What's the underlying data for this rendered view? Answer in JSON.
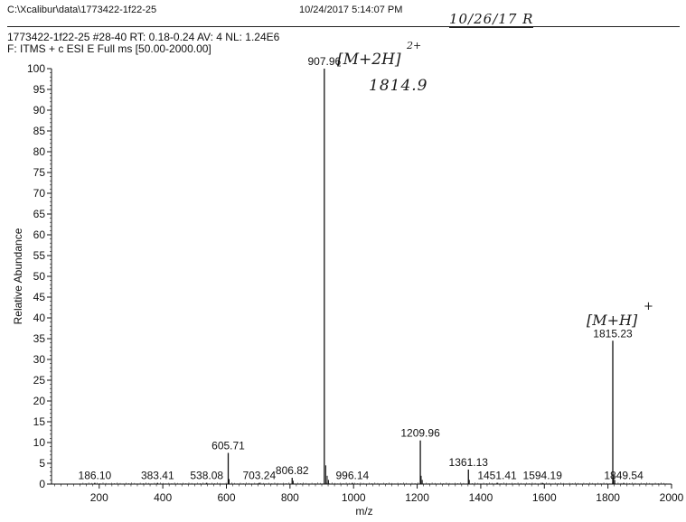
{
  "header": {
    "file_path": "C:\\Xcalibur\\data\\1773422-1f22-25",
    "datetime": "10/24/2017 5:14:07 PM",
    "scan_info": "1773422-1f22-25 #28-40   RT: 0.18-0.24   AV: 4   NL: 1.24E6",
    "filter": "F: ITMS + c ESI E Full ms [50.00-2000.00]"
  },
  "handwriting": {
    "date": "10/26/17 R",
    "m2h": "[M+2H]",
    "m2h_charge": "2+",
    "m2h_mass": "1814.9",
    "mh": "[M+H]",
    "mh_charge": "+"
  },
  "chart_data": {
    "type": "bar",
    "xlabel": "m/z",
    "ylabel": "Relative Abundance",
    "xlim": [
      50,
      2000
    ],
    "ylim": [
      0,
      100
    ],
    "x_ticks": [
      200,
      400,
      600,
      800,
      1000,
      1200,
      1400,
      1600,
      1800,
      2000
    ],
    "y_ticks": [
      0,
      5,
      10,
      15,
      20,
      25,
      30,
      35,
      40,
      45,
      50,
      55,
      60,
      65,
      70,
      75,
      80,
      85,
      90,
      95,
      100
    ],
    "peaks": [
      {
        "mz": 186.1,
        "abundance": 0.3,
        "label": "186.10"
      },
      {
        "mz": 383.41,
        "abundance": 0.3,
        "label": "383.41"
      },
      {
        "mz": 538.08,
        "abundance": 0.3,
        "label": "538.08"
      },
      {
        "mz": 605.71,
        "abundance": 7.5,
        "label": "605.71"
      },
      {
        "mz": 703.24,
        "abundance": 0.3,
        "label": "703.24"
      },
      {
        "mz": 806.82,
        "abundance": 1.5,
        "label": "806.82"
      },
      {
        "mz": 907.96,
        "abundance": 100,
        "label": "907.96"
      },
      {
        "mz": 996.14,
        "abundance": 0.3,
        "label": "996.14"
      },
      {
        "mz": 1209.96,
        "abundance": 10.5,
        "label": "1209.96"
      },
      {
        "mz": 1361.13,
        "abundance": 3.5,
        "label": "1361.13"
      },
      {
        "mz": 1451.41,
        "abundance": 0.3,
        "label": "1451.41"
      },
      {
        "mz": 1594.19,
        "abundance": 0.3,
        "label": "1594.19"
      },
      {
        "mz": 1815.23,
        "abundance": 34.5,
        "label": "1815.23"
      },
      {
        "mz": 1849.54,
        "abundance": 0.3,
        "label": "1849.54"
      }
    ],
    "minor_peaks": [
      {
        "mz": 912.5,
        "abundance": 4.5
      },
      {
        "mz": 917.0,
        "abundance": 2.0
      },
      {
        "mz": 921.0,
        "abundance": 1.0
      },
      {
        "mz": 1212.5,
        "abundance": 2.0
      },
      {
        "mz": 1216.0,
        "abundance": 1.0
      },
      {
        "mz": 1364.0,
        "abundance": 1.0
      },
      {
        "mz": 1818.0,
        "abundance": 2.0
      },
      {
        "mz": 1821.5,
        "abundance": 1.0
      },
      {
        "mz": 810.0,
        "abundance": 0.8
      },
      {
        "mz": 608.5,
        "abundance": 1.2
      }
    ]
  }
}
